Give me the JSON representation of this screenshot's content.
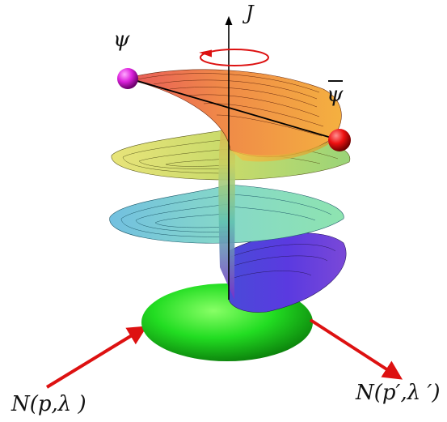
{
  "labels": {
    "axis": "J",
    "psi": "ψ",
    "psibar": "ψ",
    "incoming": "N(p,λ )",
    "outgoing": "N(p′,λ ′)"
  },
  "colors": {
    "arrow": "#dd1111",
    "psi_sphere": "#dd22dd",
    "psibar_sphere": "#ee1111",
    "ellipsoid": "#22dd22",
    "surface_top": "#f07a40",
    "surface_mid_upper": "#d8dc66",
    "surface_mid_lower": "#6fc6d8",
    "surface_bottom": "#6a28d8"
  }
}
